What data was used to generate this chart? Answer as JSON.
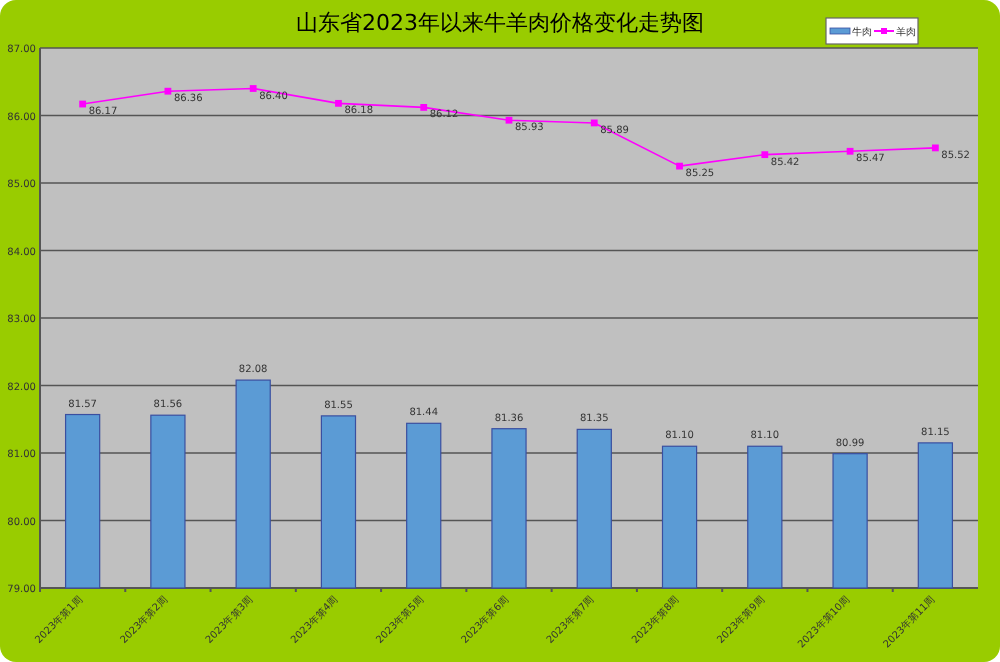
{
  "chart_data": {
    "type": "bar",
    "title": "山东省2023年以来牛羊肉价格变化走势图",
    "categories": [
      "2023年第1周",
      "2023年第2周",
      "2023年第3周",
      "2023年第4周",
      "2023年第5周",
      "2023年第6周",
      "2023年第7周",
      "2023年第8周",
      "2023年第9周",
      "2023年第10周",
      "2023年第11周"
    ],
    "series": [
      {
        "name": "牛肉",
        "color": "#5b9bd5",
        "values": [
          81.57,
          81.56,
          82.08,
          81.55,
          81.44,
          81.36,
          81.35,
          81.1,
          81.1,
          80.99,
          81.15
        ],
        "value_labels": [
          "81.57",
          "81.56",
          "82.08",
          "81.55",
          "81.44",
          "81.36",
          "81.35",
          "81.10",
          "81.10",
          "80.99",
          "81.15"
        ]
      },
      {
        "name": "羊肉",
        "type": "line",
        "color": "#ff00ff",
        "marker": "square",
        "values": [
          86.17,
          86.36,
          86.4,
          86.18,
          86.12,
          85.93,
          85.89,
          85.25,
          85.42,
          85.47,
          85.52
        ],
        "value_labels": [
          "86.17",
          "86.36",
          "86.40",
          "86.18",
          "86.12",
          "85.93",
          "85.89",
          "85.25",
          "85.42",
          "85.47",
          "85.52"
        ]
      }
    ],
    "ylim": [
      79,
      87
    ],
    "yticks": [
      {
        "value": 79,
        "label": "79.00"
      },
      {
        "value": 80,
        "label": "80.00"
      },
      {
        "value": 81,
        "label": "81.00"
      },
      {
        "value": 82,
        "label": "82.00"
      },
      {
        "value": 83,
        "label": "83.00"
      },
      {
        "value": 84,
        "label": "84.00"
      },
      {
        "value": 85,
        "label": "85.00"
      },
      {
        "value": 86,
        "label": "86.00"
      },
      {
        "value": 87,
        "label": "87.00"
      }
    ],
    "grid": "y",
    "legend": "top right"
  }
}
